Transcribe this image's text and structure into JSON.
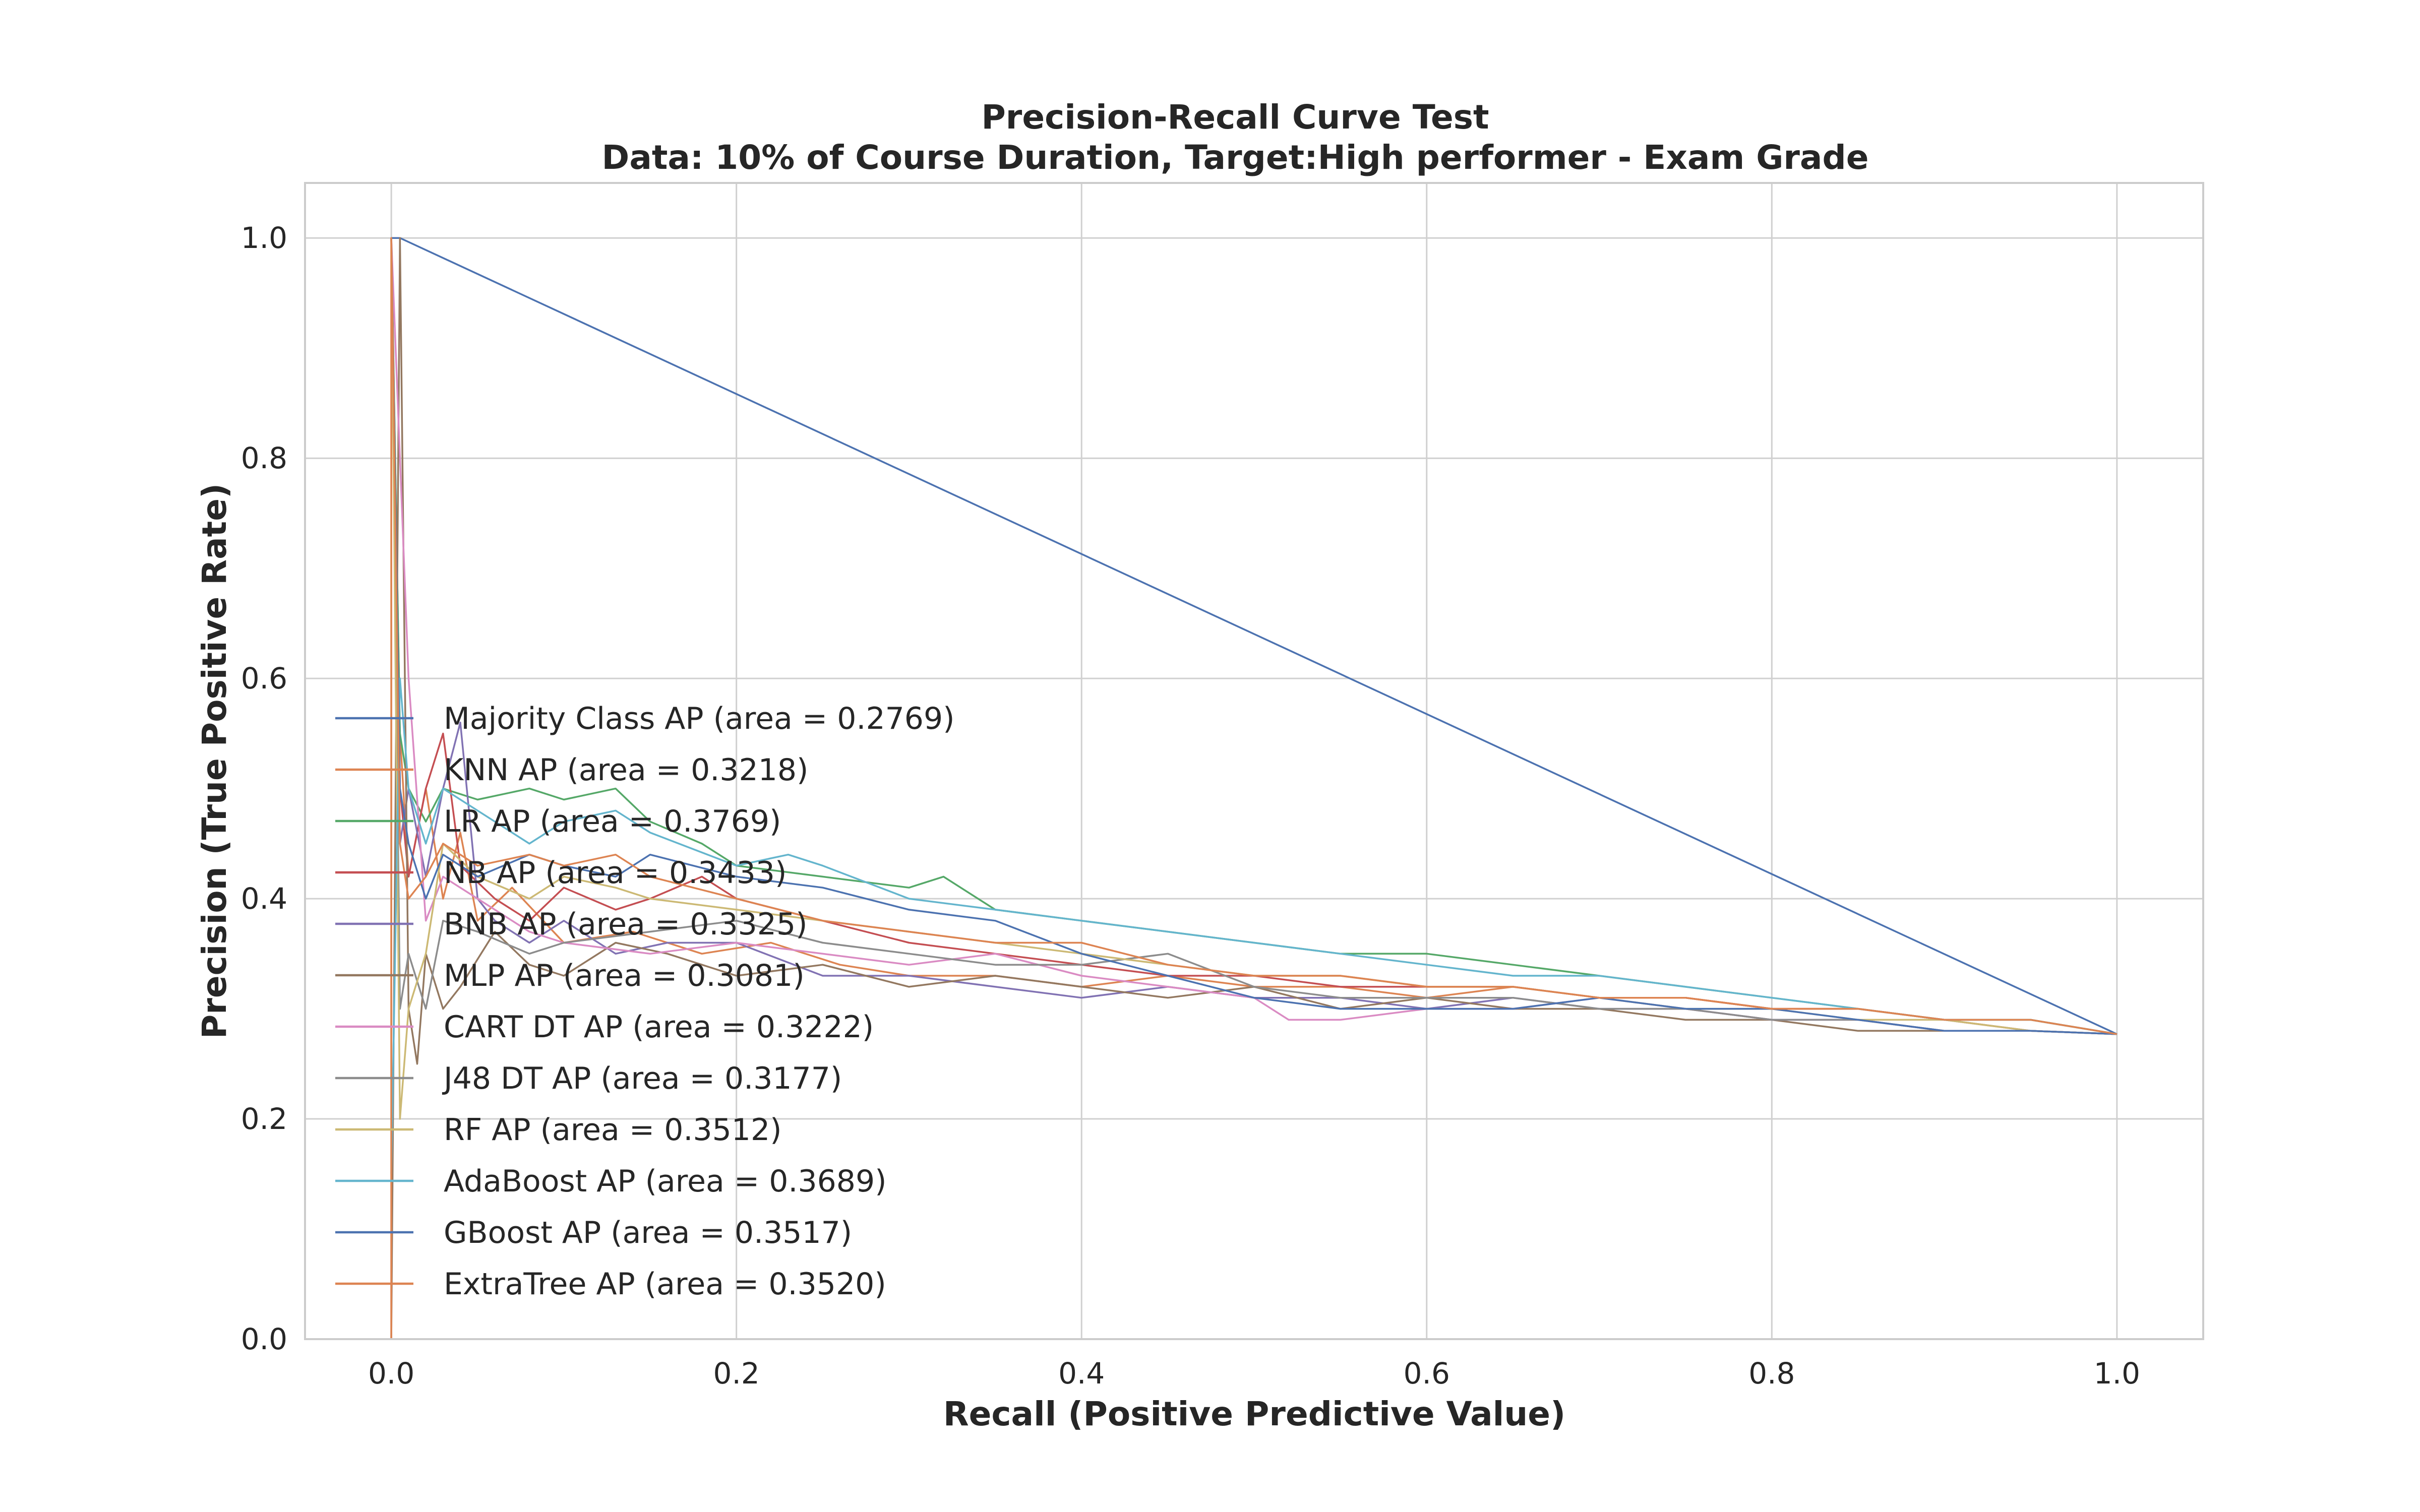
{
  "chart_data": {
    "type": "line",
    "title": "Precision-Recall Curve Test",
    "subtitle": "Data: 10% of Course Duration, Target:High performer - Exam Grade",
    "xlabel": "Recall (Positive Predictive Value)",
    "ylabel": "Precision (True Positive Rate)",
    "xlim": [
      -0.05,
      1.05
    ],
    "ylim": [
      0.0,
      1.05
    ],
    "xticks": [
      "0.0",
      "0.2",
      "0.4",
      "0.6",
      "0.8",
      "1.0"
    ],
    "yticks": [
      "0.0",
      "0.2",
      "0.4",
      "0.6",
      "0.8",
      "1.0"
    ],
    "grid": true,
    "legend_position": "center-left",
    "series": [
      {
        "name": "Majority Class AP (area = 0.2769)",
        "color": "#4c72b0",
        "x": [
          0.0,
          0.005,
          1.0
        ],
        "y": [
          1.0,
          1.0,
          0.277
        ]
      },
      {
        "name": "KNN AP (area = 0.3218)",
        "color": "#dd8452",
        "x": [
          0.0,
          0.0,
          0.005,
          0.01,
          0.02,
          0.03,
          0.04,
          0.05,
          0.07,
          0.1,
          0.14,
          0.18,
          0.22,
          0.26,
          0.3,
          0.35,
          0.4,
          0.45,
          0.5,
          0.55,
          0.6,
          0.65,
          0.7,
          0.75,
          0.8,
          0.85,
          0.9,
          0.95,
          1.0
        ],
        "y": [
          0.0,
          1.0,
          0.55,
          0.42,
          0.5,
          0.4,
          0.46,
          0.38,
          0.41,
          0.36,
          0.37,
          0.35,
          0.36,
          0.34,
          0.33,
          0.33,
          0.32,
          0.33,
          0.32,
          0.32,
          0.31,
          0.32,
          0.31,
          0.31,
          0.3,
          0.3,
          0.29,
          0.29,
          0.277
        ]
      },
      {
        "name": "LR AP (area = 0.3769)",
        "color": "#55a868",
        "x": [
          0.0,
          0.005,
          0.01,
          0.02,
          0.03,
          0.05,
          0.08,
          0.1,
          0.13,
          0.15,
          0.18,
          0.2,
          0.25,
          0.3,
          0.32,
          0.35,
          0.4,
          0.45,
          0.5,
          0.55,
          0.6,
          0.65,
          0.7,
          0.75,
          0.8,
          0.85,
          0.9,
          0.95,
          1.0
        ],
        "y": [
          1.0,
          0.55,
          0.5,
          0.47,
          0.5,
          0.49,
          0.5,
          0.49,
          0.5,
          0.47,
          0.45,
          0.43,
          0.42,
          0.41,
          0.42,
          0.39,
          0.38,
          0.37,
          0.36,
          0.35,
          0.35,
          0.34,
          0.33,
          0.32,
          0.31,
          0.3,
          0.29,
          0.29,
          0.277
        ]
      },
      {
        "name": "NB AP (area = 0.3433)",
        "color": "#c44e52",
        "x": [
          0.0,
          0.005,
          0.01,
          0.02,
          0.03,
          0.04,
          0.06,
          0.08,
          0.1,
          0.13,
          0.15,
          0.18,
          0.2,
          0.25,
          0.3,
          0.35,
          0.4,
          0.45,
          0.5,
          0.55,
          0.6,
          0.65,
          0.7,
          0.75,
          0.8,
          0.85,
          0.9,
          0.95,
          1.0
        ],
        "y": [
          1.0,
          0.5,
          0.42,
          0.5,
          0.55,
          0.43,
          0.4,
          0.38,
          0.41,
          0.39,
          0.4,
          0.42,
          0.4,
          0.38,
          0.36,
          0.35,
          0.34,
          0.33,
          0.33,
          0.32,
          0.32,
          0.32,
          0.31,
          0.31,
          0.3,
          0.3,
          0.29,
          0.28,
          0.277
        ]
      },
      {
        "name": "BNB AP (area = 0.3325)",
        "color": "#8172b3",
        "x": [
          0.0,
          0.005,
          0.01,
          0.02,
          0.03,
          0.04,
          0.05,
          0.06,
          0.08,
          0.1,
          0.13,
          0.16,
          0.2,
          0.25,
          0.3,
          0.35,
          0.4,
          0.45,
          0.5,
          0.55,
          0.6,
          0.65,
          0.7,
          0.75,
          0.8,
          0.85,
          0.9,
          0.95,
          1.0
        ],
        "y": [
          1.0,
          0.45,
          0.5,
          0.42,
          0.5,
          0.56,
          0.4,
          0.38,
          0.36,
          0.38,
          0.35,
          0.36,
          0.36,
          0.33,
          0.33,
          0.32,
          0.31,
          0.32,
          0.31,
          0.31,
          0.3,
          0.31,
          0.3,
          0.3,
          0.29,
          0.29,
          0.28,
          0.28,
          0.277
        ]
      },
      {
        "name": "MLP AP (area = 0.3081)",
        "color": "#937860",
        "x": [
          0.0,
          0.005,
          0.01,
          0.015,
          0.02,
          0.03,
          0.04,
          0.06,
          0.08,
          0.1,
          0.13,
          0.16,
          0.2,
          0.25,
          0.3,
          0.35,
          0.4,
          0.45,
          0.5,
          0.55,
          0.6,
          0.65,
          0.7,
          0.75,
          0.8,
          0.85,
          0.9,
          0.95,
          1.0
        ],
        "y": [
          0.0,
          1.0,
          0.3,
          0.25,
          0.35,
          0.3,
          0.32,
          0.37,
          0.34,
          0.33,
          0.36,
          0.35,
          0.33,
          0.34,
          0.32,
          0.33,
          0.32,
          0.31,
          0.32,
          0.3,
          0.31,
          0.3,
          0.3,
          0.29,
          0.29,
          0.28,
          0.28,
          0.28,
          0.277
        ]
      },
      {
        "name": "CART DT AP (area = 0.3222)",
        "color": "#da8bc3",
        "x": [
          0.0,
          0.005,
          0.01,
          0.02,
          0.03,
          0.05,
          0.08,
          0.1,
          0.15,
          0.2,
          0.3,
          0.35,
          0.4,
          0.45,
          0.5,
          0.52,
          0.55,
          0.6,
          0.65,
          0.7,
          0.75,
          0.8,
          0.85,
          0.9,
          0.95,
          1.0
        ],
        "y": [
          1.0,
          0.8,
          0.6,
          0.38,
          0.42,
          0.4,
          0.37,
          0.36,
          0.35,
          0.36,
          0.34,
          0.35,
          0.33,
          0.32,
          0.31,
          0.29,
          0.29,
          0.3,
          0.3,
          0.31,
          0.3,
          0.29,
          0.29,
          0.28,
          0.28,
          0.277
        ]
      },
      {
        "name": "J48 DT AP (area = 0.3177)",
        "color": "#8c8c8c",
        "x": [
          0.0,
          0.005,
          0.01,
          0.02,
          0.03,
          0.05,
          0.08,
          0.1,
          0.15,
          0.2,
          0.25,
          0.3,
          0.35,
          0.4,
          0.45,
          0.5,
          0.55,
          0.6,
          0.65,
          0.7,
          0.75,
          0.8,
          0.85,
          0.9,
          0.95,
          1.0
        ],
        "y": [
          1.0,
          0.3,
          0.35,
          0.3,
          0.38,
          0.37,
          0.35,
          0.36,
          0.37,
          0.38,
          0.36,
          0.35,
          0.34,
          0.34,
          0.35,
          0.32,
          0.31,
          0.31,
          0.31,
          0.3,
          0.3,
          0.29,
          0.29,
          0.28,
          0.28,
          0.277
        ]
      },
      {
        "name": "RF AP (area = 0.3512)",
        "color": "#ccb974",
        "x": [
          0.0,
          0.005,
          0.01,
          0.02,
          0.03,
          0.05,
          0.08,
          0.1,
          0.13,
          0.15,
          0.2,
          0.25,
          0.3,
          0.35,
          0.4,
          0.45,
          0.5,
          0.55,
          0.6,
          0.65,
          0.7,
          0.75,
          0.8,
          0.85,
          0.9,
          0.95,
          1.0
        ],
        "y": [
          1.0,
          0.2,
          0.3,
          0.35,
          0.45,
          0.42,
          0.4,
          0.42,
          0.41,
          0.4,
          0.39,
          0.38,
          0.37,
          0.36,
          0.35,
          0.34,
          0.33,
          0.33,
          0.32,
          0.32,
          0.31,
          0.3,
          0.3,
          0.29,
          0.29,
          0.28,
          0.277
        ]
      },
      {
        "name": "AdaBoost AP (area = 0.3689)",
        "color": "#64b5cd",
        "x": [
          0.0,
          0.005,
          0.01,
          0.02,
          0.03,
          0.05,
          0.08,
          0.1,
          0.13,
          0.15,
          0.2,
          0.23,
          0.25,
          0.3,
          0.35,
          0.4,
          0.45,
          0.5,
          0.55,
          0.6,
          0.65,
          0.7,
          0.75,
          0.8,
          0.85,
          0.9,
          0.95,
          1.0
        ],
        "y": [
          0.15,
          0.6,
          0.5,
          0.45,
          0.5,
          0.48,
          0.45,
          0.47,
          0.48,
          0.46,
          0.43,
          0.44,
          0.43,
          0.4,
          0.39,
          0.38,
          0.37,
          0.36,
          0.35,
          0.34,
          0.33,
          0.33,
          0.32,
          0.31,
          0.3,
          0.29,
          0.29,
          0.277
        ]
      },
      {
        "name": "GBoost AP (area = 0.3517)",
        "color": "#4c72b0",
        "x": [
          0.0,
          0.005,
          0.01,
          0.02,
          0.03,
          0.05,
          0.08,
          0.1,
          0.13,
          0.15,
          0.2,
          0.25,
          0.3,
          0.35,
          0.4,
          0.45,
          0.5,
          0.55,
          0.6,
          0.65,
          0.7,
          0.75,
          0.8,
          0.85,
          0.9,
          0.95,
          1.0
        ],
        "y": [
          1.0,
          0.5,
          0.45,
          0.4,
          0.44,
          0.42,
          0.44,
          0.43,
          0.42,
          0.44,
          0.42,
          0.41,
          0.39,
          0.38,
          0.35,
          0.33,
          0.31,
          0.3,
          0.3,
          0.3,
          0.31,
          0.3,
          0.3,
          0.29,
          0.28,
          0.28,
          0.277
        ]
      },
      {
        "name": "ExtraTree AP (area = 0.3520)",
        "color": "#dd8452",
        "x": [
          0.0,
          0.0,
          0.005,
          0.01,
          0.02,
          0.03,
          0.05,
          0.08,
          0.1,
          0.13,
          0.15,
          0.2,
          0.25,
          0.3,
          0.35,
          0.4,
          0.45,
          0.5,
          0.55,
          0.6,
          0.65,
          0.7,
          0.75,
          0.8,
          0.85,
          0.9,
          0.95,
          1.0
        ],
        "y": [
          0.0,
          1.0,
          0.45,
          0.4,
          0.42,
          0.45,
          0.43,
          0.44,
          0.43,
          0.44,
          0.42,
          0.4,
          0.38,
          0.37,
          0.36,
          0.36,
          0.34,
          0.33,
          0.33,
          0.32,
          0.32,
          0.31,
          0.31,
          0.3,
          0.3,
          0.29,
          0.29,
          0.277
        ]
      }
    ]
  }
}
